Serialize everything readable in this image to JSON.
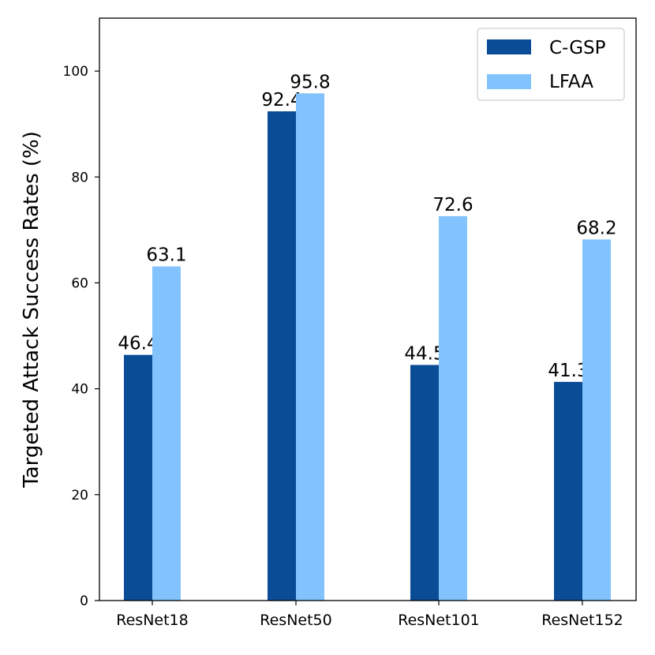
{
  "chart_data": {
    "type": "bar",
    "title": "",
    "xlabel": "",
    "ylabel": "Targeted Attack Success Rates (%)",
    "categories": [
      "ResNet18",
      "ResNet50",
      "ResNet101",
      "ResNet152"
    ],
    "series": [
      {
        "name": "C-GSP",
        "values": [
          46.4,
          92.4,
          44.5,
          41.3
        ],
        "color": "#0a4c96"
      },
      {
        "name": "LFAA",
        "values": [
          63.1,
          95.8,
          72.6,
          68.2
        ],
        "color": "#82c3fd"
      }
    ],
    "ylim": [
      0,
      110
    ],
    "yticks": [
      0,
      20,
      40,
      60,
      80,
      100
    ],
    "value_labels": true,
    "grid": false,
    "legend_position": "top-right"
  }
}
